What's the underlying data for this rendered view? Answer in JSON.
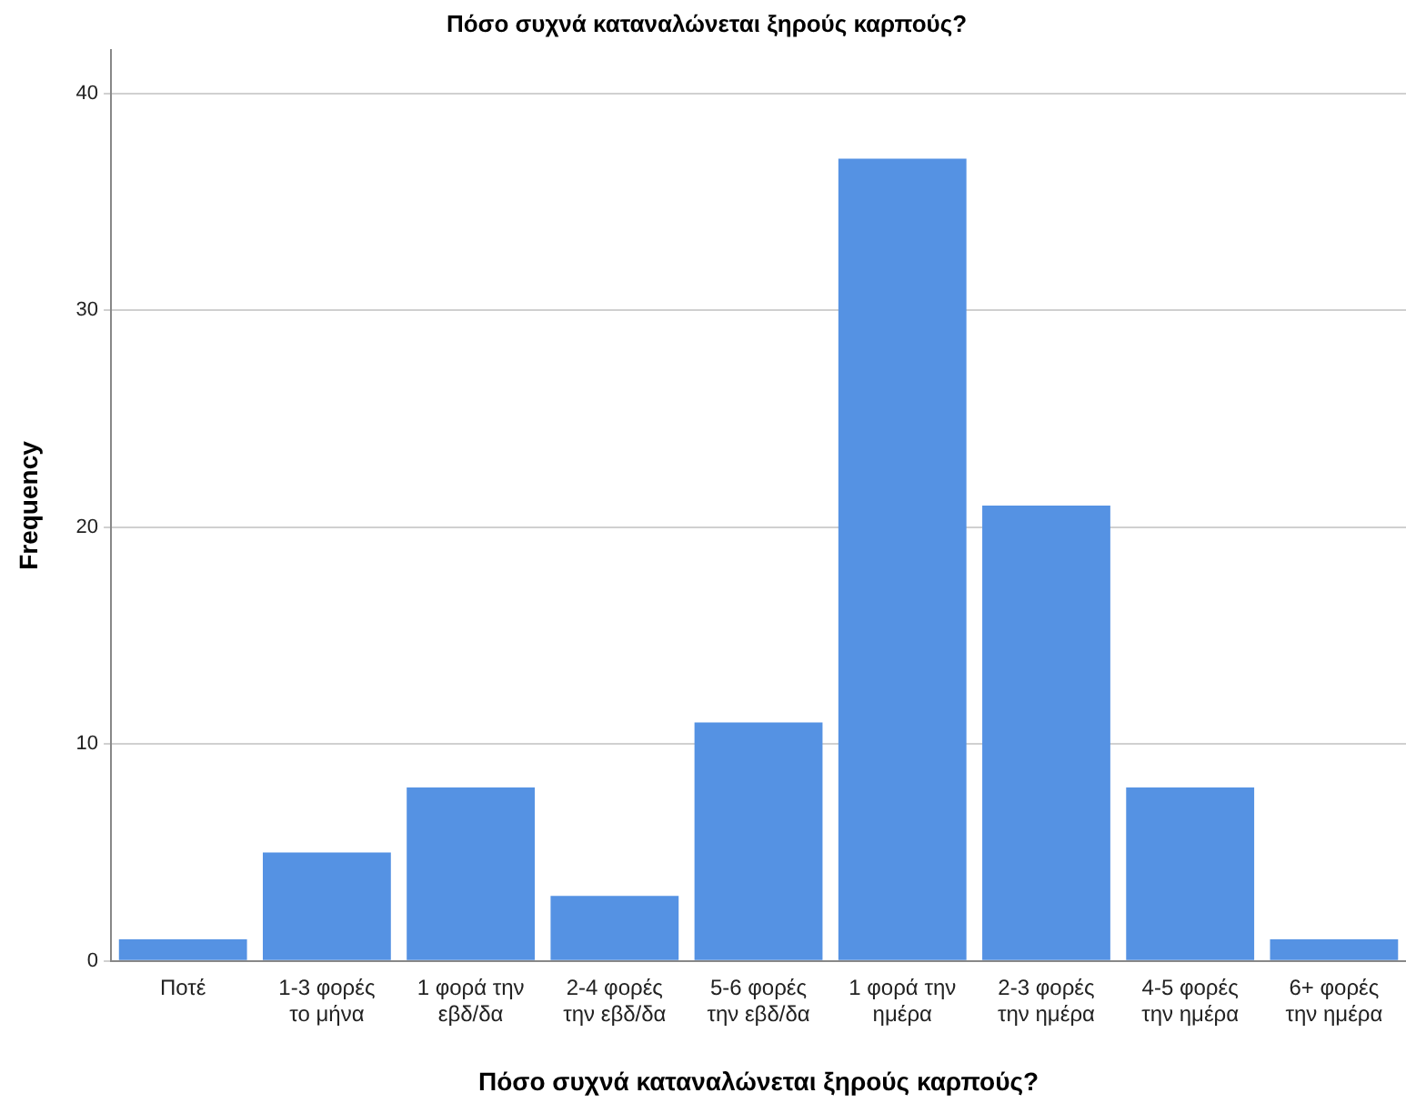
{
  "chart_data": {
    "type": "bar",
    "title": "Πόσο συχνά καταναλώνεται ξηρούς καρπούς?",
    "xlabel": "Πόσο συχνά καταναλώνεται ξηρούς καρπούς?",
    "ylabel": "Frequency",
    "categories": [
      "Ποτέ",
      "1-3 φορές το μήνα",
      "1 φορά την εβδ/δα",
      "2-4 φορές την εβδ/δα",
      "5-6 φορές την εβδ/δα",
      "1 φορά την ημέρα",
      "2-3 φορές την ημέρα",
      "4-5 φορές την ημέρα",
      "6+ φορές την ημέρα"
    ],
    "values": [
      1,
      5,
      8,
      3,
      11,
      37,
      21,
      8,
      1
    ],
    "color": "#5592e3",
    "ylim": [
      0,
      42
    ],
    "yticks": [
      0,
      10,
      20,
      30,
      40
    ],
    "grid": "y",
    "legend": false
  }
}
